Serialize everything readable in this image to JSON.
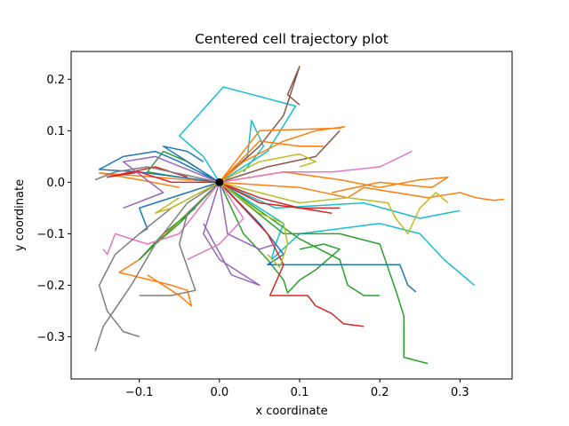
{
  "chart_data": {
    "type": "line",
    "title": "Centered cell trajectory plot",
    "xlabel": "x coordinate",
    "ylabel": "y coordinate",
    "xlim": [
      -0.185,
      0.365
    ],
    "ylim": [
      -0.382,
      0.254
    ],
    "xticks": [
      -0.1,
      0.0,
      0.1,
      0.2,
      0.3
    ],
    "xtick_labels": [
      "−0.1",
      "0.0",
      "0.1",
      "0.2",
      "0.3"
    ],
    "yticks": [
      -0.3,
      -0.2,
      -0.1,
      0.0,
      0.1,
      0.2
    ],
    "ytick_labels": [
      "−0.3",
      "−0.2",
      "−0.1",
      "0.0",
      "0.1",
      "0.2"
    ],
    "grid": false,
    "legend": "none",
    "origin_marker": {
      "x": 0.0,
      "y": 0.0,
      "color": "#000000"
    },
    "colors": [
      "#1f77b4",
      "#ff7f0e",
      "#2ca02c",
      "#d62728",
      "#9467bd",
      "#8c564b",
      "#e377c2",
      "#7f7f7f",
      "#bcbd22",
      "#17becf"
    ],
    "series": [
      {
        "color_index": 9,
        "points": [
          [
            0,
            0
          ],
          [
            -0.02,
            0.05
          ],
          [
            -0.05,
            0.09
          ],
          [
            0.005,
            0.185
          ],
          [
            0.095,
            0.148
          ],
          [
            0.06,
            0.06
          ],
          [
            0,
            0
          ]
        ]
      },
      {
        "color_index": 9,
        "points": [
          [
            0,
            0
          ],
          [
            0.04,
            -0.04
          ],
          [
            0.08,
            -0.08
          ],
          [
            0.07,
            -0.12
          ],
          [
            0.065,
            -0.15
          ],
          [
            0.1,
            -0.1
          ],
          [
            0.2,
            -0.08
          ],
          [
            0.25,
            -0.1
          ],
          [
            0.28,
            -0.15
          ],
          [
            0.318,
            -0.2
          ]
        ]
      },
      {
        "color_index": 9,
        "points": [
          [
            0,
            0
          ],
          [
            0.07,
            -0.05
          ],
          [
            0.18,
            -0.04
          ],
          [
            0.25,
            -0.07
          ],
          [
            0.3,
            -0.055
          ]
        ]
      },
      {
        "color_index": 9,
        "points": [
          [
            0,
            0
          ],
          [
            0.035,
            0.05
          ],
          [
            0.04,
            0.12
          ],
          [
            0.055,
            0.07
          ],
          [
            0.03,
            0.02
          ]
        ]
      },
      {
        "color_index": 5,
        "points": [
          [
            0,
            0
          ],
          [
            0.05,
            0.07
          ],
          [
            0.08,
            0.13
          ],
          [
            0.1,
            0.225
          ],
          [
            0.085,
            0.17
          ],
          [
            0.1,
            0.15
          ]
        ]
      },
      {
        "color_index": 5,
        "points": [
          [
            0,
            0
          ],
          [
            0.06,
            0.03
          ],
          [
            0.12,
            0.05
          ],
          [
            0.15,
            0.1
          ]
        ]
      },
      {
        "color_index": 1,
        "points": [
          [
            0,
            0
          ],
          [
            0.05,
            0.1
          ],
          [
            0.15,
            0.105
          ],
          [
            0.156,
            0.108
          ],
          [
            0.12,
            0.1
          ],
          [
            0.08,
            0.08
          ],
          [
            0.03,
            0.04
          ],
          [
            0,
            0
          ]
        ]
      },
      {
        "color_index": 1,
        "points": [
          [
            0,
            0
          ],
          [
            0.1,
            -0.01
          ],
          [
            0.16,
            -0.03
          ],
          [
            0.18,
            -0.01
          ],
          [
            0.26,
            -0.03
          ],
          [
            0.3,
            -0.02
          ],
          [
            0.32,
            -0.03
          ],
          [
            0.342,
            -0.035
          ],
          [
            0.355,
            -0.033
          ]
        ]
      },
      {
        "color_index": 1,
        "points": [
          [
            0,
            0
          ],
          [
            0.08,
            0.02
          ],
          [
            0.15,
            0.005
          ],
          [
            0.2,
            -0.01
          ],
          [
            0.25,
            0.005
          ],
          [
            0.285,
            0.01
          ],
          [
            0.265,
            -0.01
          ],
          [
            0.2,
            0
          ],
          [
            0.14,
            -0.02
          ]
        ]
      },
      {
        "color_index": 1,
        "points": [
          [
            0,
            0
          ],
          [
            -0.06,
            -0.09
          ],
          [
            -0.1,
            -0.15
          ],
          [
            -0.125,
            -0.175
          ],
          [
            -0.06,
            -0.2
          ],
          [
            -0.04,
            -0.21
          ],
          [
            -0.035,
            -0.24
          ],
          [
            -0.05,
            -0.22
          ],
          [
            -0.09,
            -0.18
          ]
        ]
      },
      {
        "color_index": 1,
        "points": [
          [
            0,
            0
          ],
          [
            -0.08,
            0.01
          ],
          [
            -0.15,
            0.018
          ],
          [
            -0.1,
            0.005
          ],
          [
            -0.05,
            -0.01
          ]
        ]
      },
      {
        "color_index": 1,
        "points": [
          [
            0,
            0
          ],
          [
            0.05,
            0.08
          ],
          [
            0.1,
            0.07
          ],
          [
            0.13,
            0.07
          ]
        ]
      },
      {
        "color_index": 2,
        "points": [
          [
            0,
            0
          ],
          [
            0.03,
            -0.1
          ],
          [
            0.06,
            -0.15
          ],
          [
            0.08,
            -0.19
          ],
          [
            0.085,
            -0.215
          ],
          [
            0.1,
            -0.19
          ],
          [
            0.12,
            -0.17
          ],
          [
            0.15,
            -0.13
          ],
          [
            0.13,
            -0.12
          ],
          [
            0.1,
            -0.13
          ]
        ]
      },
      {
        "color_index": 2,
        "points": [
          [
            0,
            0
          ],
          [
            0.08,
            -0.1
          ],
          [
            0.15,
            -0.1
          ],
          [
            0.2,
            -0.12
          ],
          [
            0.22,
            -0.21
          ],
          [
            0.23,
            -0.26
          ],
          [
            0.23,
            -0.34
          ],
          [
            0.26,
            -0.352
          ]
        ]
      },
      {
        "color_index": 2,
        "points": [
          [
            0,
            0
          ],
          [
            0.1,
            -0.11
          ],
          [
            0.15,
            -0.15
          ],
          [
            0.16,
            -0.2
          ],
          [
            0.18,
            -0.22
          ],
          [
            0.2,
            -0.22
          ]
        ]
      },
      {
        "color_index": 2,
        "points": [
          [
            0,
            0
          ],
          [
            -0.05,
            -0.08
          ],
          [
            -0.08,
            -0.12
          ],
          [
            -0.1,
            -0.15
          ],
          [
            -0.07,
            -0.1
          ],
          [
            -0.03,
            -0.05
          ]
        ]
      },
      {
        "color_index": 2,
        "points": [
          [
            0,
            0
          ],
          [
            -0.04,
            0.04
          ],
          [
            -0.07,
            0.06
          ],
          [
            -0.09,
            0.02
          ],
          [
            -0.05,
            0.01
          ]
        ]
      },
      {
        "color_index": 0,
        "points": [
          [
            0,
            0
          ],
          [
            0.05,
            -0.08
          ],
          [
            0.07,
            -0.12
          ],
          [
            0.08,
            -0.14
          ],
          [
            0.06,
            -0.16
          ],
          [
            0.1,
            -0.16
          ],
          [
            0.225,
            -0.16
          ],
          [
            0.235,
            -0.2
          ],
          [
            0.245,
            -0.213
          ]
        ]
      },
      {
        "color_index": 0,
        "points": [
          [
            0,
            0
          ],
          [
            -0.1,
            0.02
          ],
          [
            -0.15,
            0.025
          ],
          [
            -0.12,
            0.05
          ],
          [
            -0.08,
            0.06
          ],
          [
            -0.05,
            0.04
          ],
          [
            0,
            0
          ]
        ]
      },
      {
        "color_index": 0,
        "points": [
          [
            0,
            0
          ],
          [
            -0.07,
            0.07
          ],
          [
            -0.04,
            0.06
          ],
          [
            -0.02,
            0.04
          ]
        ]
      },
      {
        "color_index": 0,
        "points": [
          [
            0,
            0
          ],
          [
            -0.1,
            -0.05
          ],
          [
            -0.09,
            -0.09
          ],
          [
            -0.1,
            -0.1
          ]
        ]
      },
      {
        "color_index": 3,
        "points": [
          [
            0,
            0
          ],
          [
            0.05,
            -0.04
          ],
          [
            0.1,
            -0.05
          ],
          [
            0.14,
            -0.06
          ]
        ]
      },
      {
        "color_index": 3,
        "points": [
          [
            0,
            0
          ],
          [
            0.06,
            -0.1
          ],
          [
            0.08,
            -0.16
          ],
          [
            0.063,
            -0.22
          ],
          [
            0.11,
            -0.22
          ],
          [
            0.12,
            -0.24
          ],
          [
            0.14,
            -0.255
          ],
          [
            0.155,
            -0.275
          ],
          [
            0.18,
            -0.28
          ]
        ]
      },
      {
        "color_index": 3,
        "points": [
          [
            0,
            0
          ],
          [
            -0.06,
            0
          ],
          [
            -0.1,
            0.02
          ],
          [
            -0.14,
            0.01
          ],
          [
            -0.08,
            0.03
          ],
          [
            -0.04,
            0.01
          ]
        ]
      },
      {
        "color_index": 3,
        "points": [
          [
            0,
            0
          ],
          [
            0.05,
            -0.03
          ],
          [
            0.1,
            -0.05
          ],
          [
            0.15,
            -0.05
          ]
        ]
      },
      {
        "color_index": 4,
        "points": [
          [
            0,
            0
          ],
          [
            -0.02,
            -0.1
          ],
          [
            0,
            -0.15
          ],
          [
            0.05,
            -0.2
          ],
          [
            0.015,
            -0.18
          ],
          [
            -0.02,
            -0.08
          ]
        ]
      },
      {
        "color_index": 4,
        "points": [
          [
            0,
            0
          ],
          [
            -0.08,
            0.05
          ],
          [
            -0.12,
            0.04
          ],
          [
            -0.07,
            -0.02
          ],
          [
            -0.12,
            -0.05
          ]
        ]
      },
      {
        "color_index": 4,
        "points": [
          [
            0,
            0
          ],
          [
            0.01,
            -0.1
          ],
          [
            0.05,
            -0.13
          ],
          [
            0.07,
            -0.12
          ]
        ]
      },
      {
        "color_index": 6,
        "points": [
          [
            0,
            0
          ],
          [
            0.08,
            0.02
          ],
          [
            0.14,
            0.02
          ],
          [
            0.2,
            0.03
          ],
          [
            0.24,
            0.06
          ]
        ]
      },
      {
        "color_index": 6,
        "points": [
          [
            0,
            0
          ],
          [
            -0.05,
            -0.1
          ],
          [
            -0.09,
            -0.12
          ],
          [
            -0.13,
            -0.1
          ],
          [
            -0.14,
            -0.14
          ],
          [
            -0.145,
            -0.13
          ]
        ]
      },
      {
        "color_index": 6,
        "points": [
          [
            0,
            0
          ],
          [
            0.03,
            -0.07
          ],
          [
            0,
            -0.12
          ],
          [
            -0.04,
            -0.15
          ]
        ]
      },
      {
        "color_index": 7,
        "points": [
          [
            0,
            0
          ],
          [
            -0.04,
            -0.04
          ],
          [
            -0.08,
            -0.12
          ],
          [
            -0.11,
            -0.2
          ],
          [
            -0.145,
            -0.28
          ],
          [
            -0.155,
            -0.328
          ]
        ]
      },
      {
        "color_index": 7,
        "points": [
          [
            0,
            0
          ],
          [
            -0.06,
            -0.05
          ],
          [
            -0.1,
            -0.1
          ],
          [
            -0.13,
            -0.14
          ],
          [
            -0.15,
            -0.2
          ],
          [
            -0.14,
            -0.25
          ],
          [
            -0.12,
            -0.29
          ],
          [
            -0.1,
            -0.3
          ]
        ]
      },
      {
        "color_index": 7,
        "points": [
          [
            0,
            0
          ],
          [
            -0.09,
            0.03
          ],
          [
            -0.13,
            0.02
          ],
          [
            -0.155,
            0.005
          ]
        ]
      },
      {
        "color_index": 7,
        "points": [
          [
            0,
            0
          ],
          [
            -0.04,
            -0.06
          ],
          [
            -0.05,
            -0.12
          ],
          [
            -0.03,
            -0.21
          ],
          [
            -0.06,
            -0.22
          ],
          [
            -0.1,
            -0.22
          ]
        ]
      },
      {
        "color_index": 8,
        "points": [
          [
            0,
            0
          ],
          [
            0.1,
            -0.04
          ],
          [
            0.16,
            -0.03
          ],
          [
            0.21,
            -0.04
          ],
          [
            0.22,
            -0.07
          ],
          [
            0.235,
            -0.1
          ],
          [
            0.25,
            -0.05
          ],
          [
            0.27,
            -0.02
          ],
          [
            0.285,
            -0.04
          ]
        ]
      },
      {
        "color_index": 8,
        "points": [
          [
            0,
            0
          ],
          [
            0.05,
            -0.06
          ],
          [
            0.08,
            -0.08
          ],
          [
            0.085,
            -0.12
          ],
          [
            0.075,
            -0.165
          ],
          [
            0.06,
            -0.14
          ]
        ]
      },
      {
        "color_index": 8,
        "points": [
          [
            0,
            0
          ],
          [
            0.05,
            0.04
          ],
          [
            0.1,
            0.055
          ],
          [
            0.12,
            0.04
          ],
          [
            0.1,
            0.03
          ]
        ]
      },
      {
        "color_index": 8,
        "points": [
          [
            0,
            0
          ],
          [
            -0.06,
            -0.05
          ],
          [
            -0.08,
            -0.06
          ],
          [
            -0.05,
            -0.03
          ]
        ]
      }
    ]
  }
}
